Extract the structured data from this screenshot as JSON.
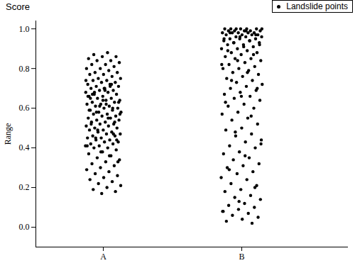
{
  "chart_data": {
    "type": "scatter",
    "title": "Score",
    "y_label": "Range",
    "categories": [
      "A",
      "B"
    ],
    "ylim": [
      -0.1,
      1.04
    ],
    "yticks": [
      {
        "value": 0,
        "label": "0.0"
      },
      0.2,
      0.4,
      0.6,
      0.8,
      {
        "value": 1,
        "label": "1.0"
      }
    ],
    "legend": "top-right",
    "grid": false,
    "series": [
      {
        "name": "Landslide points",
        "color": "#000000",
        "marker": "circle",
        "values": [
          [
            0.88,
            0.87,
            0.86,
            0.86,
            0.85,
            0.84,
            0.84,
            0.83,
            0.82,
            0.82,
            0.81,
            0.8,
            0.8,
            0.79,
            0.78,
            0.78,
            0.77,
            0.77,
            0.76,
            0.75,
            0.75,
            0.74,
            0.74,
            0.73,
            0.73,
            0.72,
            0.72,
            0.71,
            0.71,
            0.7,
            0.7,
            0.69,
            0.69,
            0.68,
            0.68,
            0.67,
            0.67,
            0.66,
            0.66,
            0.65,
            0.65,
            0.64,
            0.64,
            0.63,
            0.63,
            0.62,
            0.62,
            0.61,
            0.61,
            0.6,
            0.6,
            0.59,
            0.59,
            0.58,
            0.58,
            0.57,
            0.57,
            0.56,
            0.56,
            0.55,
            0.55,
            0.54,
            0.54,
            0.53,
            0.53,
            0.52,
            0.52,
            0.51,
            0.51,
            0.5,
            0.5,
            0.49,
            0.49,
            0.48,
            0.48,
            0.47,
            0.47,
            0.46,
            0.46,
            0.45,
            0.45,
            0.44,
            0.44,
            0.43,
            0.43,
            0.42,
            0.42,
            0.41,
            0.41,
            0.4,
            0.4,
            0.39,
            0.38,
            0.37,
            0.36,
            0.35,
            0.34,
            0.33,
            0.32,
            0.31,
            0.3,
            0.29,
            0.28,
            0.27,
            0.26,
            0.25,
            0.24,
            0.23,
            0.22,
            0.21,
            0.2,
            0.19,
            0.18,
            0.17,
            0.66,
            0.71,
            0.58,
            0.63,
            0.69,
            0.52,
            0.47,
            0.61,
            0.74,
            0.55,
            0.68,
            0.44,
            0.64,
            0.59,
            0.72,
            0.49,
            0.57,
            0.62,
            0.67,
            0.53,
            0.38,
            0.41,
            0.36,
            0.45,
            0.33,
            0.7,
            0.65,
            0.6
          ],
          [
            1.0,
            1.0,
            1.0,
            1.0,
            1.0,
            0.99,
            0.99,
            0.99,
            0.99,
            0.99,
            0.98,
            0.98,
            0.98,
            0.98,
            0.98,
            0.97,
            0.97,
            0.97,
            0.97,
            0.96,
            0.96,
            0.96,
            0.95,
            0.95,
            0.95,
            0.94,
            0.94,
            0.93,
            0.93,
            0.92,
            0.92,
            0.91,
            0.9,
            0.9,
            0.89,
            0.88,
            0.88,
            0.87,
            0.86,
            0.85,
            0.85,
            0.84,
            0.83,
            0.82,
            0.81,
            0.8,
            0.8,
            0.79,
            0.78,
            0.77,
            0.76,
            0.75,
            0.74,
            0.73,
            0.72,
            0.71,
            0.7,
            0.69,
            0.68,
            0.67,
            0.66,
            0.65,
            0.64,
            0.62,
            0.61,
            0.6,
            0.58,
            0.57,
            0.55,
            0.54,
            0.52,
            0.5,
            0.49,
            0.47,
            0.46,
            0.44,
            0.43,
            0.41,
            0.4,
            0.38,
            0.37,
            0.35,
            0.34,
            0.32,
            0.31,
            0.3,
            0.28,
            0.27,
            0.25,
            0.24,
            0.22,
            0.21,
            0.19,
            0.18,
            0.16,
            0.15,
            0.14,
            0.12,
            0.11,
            0.1,
            0.09,
            0.08,
            0.07,
            0.06,
            0.05,
            0.04,
            0.03,
            0.02,
            1.0,
            1.0,
            0.99,
            0.98,
            0.97,
            0.96,
            0.95,
            0.94,
            0.93,
            0.92,
            0.91,
            0.89,
            0.87,
            0.84,
            0.82,
            0.78,
            0.74,
            0.7,
            0.66,
            0.63,
            0.56,
            0.48,
            0.42,
            0.36,
            0.29,
            0.2,
            0.13,
            0.08
          ]
        ]
      }
    ]
  }
}
